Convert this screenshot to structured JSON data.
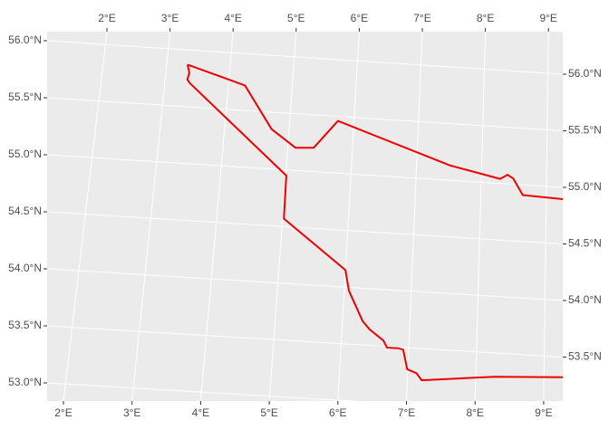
{
  "chart_data": {
    "type": "map",
    "xticks": [
      {
        "value": 2,
        "label": "2°E"
      },
      {
        "value": 3,
        "label": "3°E"
      },
      {
        "value": 4,
        "label": "4°E"
      },
      {
        "value": 5,
        "label": "5°E"
      },
      {
        "value": 6,
        "label": "6°E"
      },
      {
        "value": 7,
        "label": "7°E"
      },
      {
        "value": 8,
        "label": "8°E"
      },
      {
        "value": 9,
        "label": "9°E"
      }
    ],
    "yticks": [
      {
        "value": 53,
        "label": "53.0°N"
      },
      {
        "value": 53.5,
        "label": "53.5°N"
      },
      {
        "value": 54,
        "label": "54.0°N"
      },
      {
        "value": 54.5,
        "label": "54.5°N"
      },
      {
        "value": 55,
        "label": "55.0°N"
      },
      {
        "value": 55.5,
        "label": "55.5°N"
      },
      {
        "value": 56,
        "label": "56.0°N"
      }
    ],
    "grid": true,
    "boundary": {
      "color": "#ee0000",
      "lon": [
        3.33,
        4.26,
        4.73,
        5.12,
        5.4,
        5.75,
        7.52,
        8.29,
        8.4,
        8.49,
        8.64,
        9.5,
        9.5,
        8.27,
        7.21,
        7.13,
        6.99,
        6.92,
        6.85,
        6.68,
        6.62,
        6.41,
        6.3,
        6.07,
        6.0,
        5.02,
        5.01,
        3.39,
        3.35,
        3.37,
        3.33
      ],
      "lat": [
        55.87,
        55.72,
        55.35,
        55.2,
        55.21,
        55.46,
        55.13,
        55.04,
        55.08,
        55.05,
        54.91,
        54.89,
        53.33,
        53.29,
        53.22,
        53.28,
        53.31,
        53.48,
        53.49,
        53.49,
        53.55,
        53.64,
        53.71,
        53.97,
        54.15,
        54.57,
        54.95,
        55.71,
        55.74,
        55.8,
        55.87
      ]
    }
  }
}
